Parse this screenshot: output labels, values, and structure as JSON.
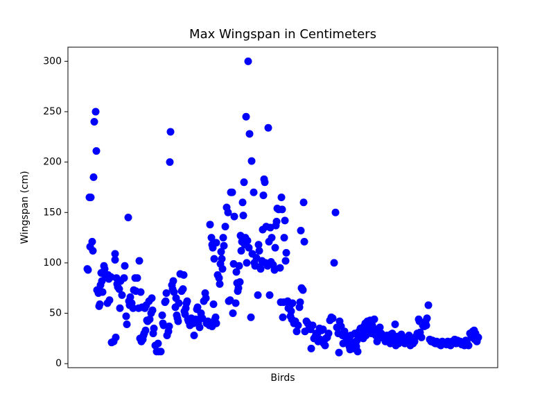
{
  "chart_data": {
    "type": "scatter",
    "title": "Max Wingspan in Centimeters",
    "x_label": "Birds",
    "y_label": "Wingspan (cm)",
    "color": "#0000ff",
    "xlim": [
      -28,
      592
    ],
    "xticks": [],
    "ylim": [
      -4,
      314
    ],
    "yticks": [
      0,
      50,
      100,
      150,
      200,
      250,
      300
    ],
    "x": [
      0,
      1,
      3,
      5,
      4,
      7,
      8,
      9,
      10,
      12,
      13,
      14,
      16,
      17,
      18,
      19,
      20,
      21,
      22,
      24,
      25,
      26,
      27,
      29,
      30,
      31,
      32,
      34,
      35,
      38,
      40,
      40,
      41,
      42,
      43,
      44,
      46,
      47,
      48,
      50,
      53,
      54,
      56,
      57,
      59,
      60,
      61,
      62,
      64,
      66,
      67,
      69,
      70,
      72,
      74,
      75,
      76,
      77,
      78,
      79,
      80,
      81,
      82,
      83,
      84,
      85,
      86,
      87,
      89,
      90,
      92,
      93,
      94,
      95,
      96,
      98,
      100,
      102,
      103,
      106,
      108,
      109,
      110,
      112,
      113,
      114,
      115,
      117,
      118,
      119,
      120,
      122,
      123,
      124,
      125,
      127,
      128,
      129,
      130,
      131,
      132,
      134,
      136,
      138,
      139,
      140,
      141,
      142,
      143,
      144,
      145,
      146,
      148,
      150,
      152,
      153,
      154,
      156,
      158,
      159,
      160,
      162,
      163,
      164,
      166,
      168,
      170,
      171,
      172,
      174,
      176,
      178,
      180,
      182,
      183,
      184,
      185,
      186,
      177,
      179,
      180,
      181,
      183,
      186,
      188,
      190,
      191,
      192,
      193,
      194,
      195,
      196,
      197,
      199,
      201,
      203,
      204,
      206,
      207,
      209,
      210,
      211,
      212,
      214,
      215,
      216,
      217,
      218,
      219,
      220,
      221,
      222,
      223,
      224,
      225,
      226,
      227,
      228,
      229,
      230,
      231,
      232,
      233,
      234,
      236,
      237,
      238,
      240,
      241,
      242,
      244,
      246,
      247,
      248,
      249,
      250,
      252,
      253,
      254,
      255,
      256,
      257,
      258,
      260,
      261,
      262,
      263,
      264,
      265,
      266,
      268,
      270,
      271,
      272,
      273,
      274,
      276,
      278,
      279,
      280,
      281,
      282,
      283,
      284,
      285,
      286,
      287,
      289,
      290,
      292,
      293,
      294,
      295,
      296,
      298,
      300,
      302,
      304,
      306,
      307,
      308,
      309,
      310,
      311,
      312,
      313,
      314,
      316,
      318,
      320,
      322,
      323,
      325,
      327,
      329,
      330,
      332,
      333,
      335,
      336,
      338,
      340,
      341,
      343,
      344,
      346,
      348,
      350,
      352,
      354,
      356,
      358,
      360,
      362,
      363,
      364,
      366,
      368,
      369,
      371,
      373,
      374,
      376,
      378,
      379,
      380,
      382,
      383,
      384,
      386,
      387,
      388,
      389,
      390,
      392,
      393,
      394,
      396,
      398,
      399,
      400,
      401,
      402,
      404,
      405,
      406,
      408,
      410,
      411,
      412,
      414,
      416,
      417,
      418,
      420,
      421,
      422,
      423,
      424,
      426,
      428,
      429,
      430,
      432,
      433,
      434,
      436,
      437,
      438,
      440,
      442,
      443,
      444,
      445,
      446,
      448,
      449,
      450,
      452,
      453,
      454,
      456,
      458,
      460,
      462,
      464,
      466,
      468,
      470,
      472,
      474,
      476,
      478,
      479,
      480,
      482,
      484,
      486,
      488,
      489,
      490,
      492,
      494,
      496,
      498,
      500,
      502,
      504,
      506,
      508,
      510,
      512,
      514,
      516,
      518,
      520,
      522,
      524,
      526,
      528,
      530,
      532,
      534,
      536,
      538,
      540,
      542,
      544,
      546,
      548,
      550,
      552,
      554,
      556,
      558,
      559,
      560,
      562,
      563,
      564
    ],
    "values": [
      94,
      93,
      165,
      165,
      116,
      121,
      112,
      185,
      240,
      250,
      211,
      73,
      70,
      57,
      59,
      78,
      90,
      82,
      71,
      97,
      94,
      87,
      88,
      60,
      88,
      84,
      63,
      86,
      21,
      22,
      103,
      109,
      26,
      85,
      79,
      76,
      74,
      55,
      82,
      68,
      85,
      97,
      47,
      39,
      145,
      62,
      58,
      66,
      60,
      55,
      73,
      85,
      72,
      85,
      55,
      102,
      25,
      71,
      22,
      56,
      24,
      28,
      30,
      55,
      33,
      58,
      43,
      42,
      62,
      44,
      50,
      65,
      53,
      30,
      35,
      18,
      12,
      20,
      12,
      12,
      48,
      40,
      38,
      61,
      62,
      70,
      28,
      32,
      37,
      200,
      230,
      78,
      74,
      82,
      71,
      56,
      65,
      48,
      45,
      42,
      60,
      89,
      72,
      74,
      88,
      52,
      49,
      55,
      60,
      62,
      44,
      42,
      38,
      45,
      42,
      40,
      28,
      44,
      54,
      56,
      40,
      36,
      45,
      50,
      45,
      62,
      70,
      65,
      40,
      42,
      38,
      40,
      37,
      59,
      42,
      44,
      46,
      40,
      138,
      125,
      118,
      115,
      104,
      120,
      88,
      85,
      79,
      99,
      111,
      104,
      94,
      125,
      117,
      136,
      155,
      150,
      62,
      63,
      170,
      170,
      50,
      99,
      146,
      60,
      91,
      80,
      72,
      75,
      97,
      81,
      127,
      112,
      121,
      160,
      147,
      180,
      118,
      125,
      245,
      100,
      122,
      300,
      115,
      228,
      46,
      201,
      109,
      170,
      100,
      97,
      105,
      68,
      118,
      112,
      96,
      94,
      102,
      133,
      167,
      183,
      180,
      100,
      136,
      97,
      234,
      121,
      68,
      135,
      101,
      125,
      98,
      93,
      115,
      137,
      141,
      154,
      153,
      95,
      61,
      165,
      153,
      46,
      61,
      125,
      142,
      102,
      110,
      62,
      55,
      57,
      47,
      52,
      44,
      60,
      40,
      42,
      32,
      38,
      56,
      61,
      132,
      75,
      74,
      73,
      160,
      121,
      32,
      42,
      40,
      35,
      34,
      15,
      38,
      25,
      27,
      30,
      30,
      22,
      35,
      24,
      33,
      34,
      20,
      18,
      25,
      26,
      30,
      43,
      46,
      45,
      100,
      150,
      36,
      30,
      11,
      42,
      37,
      28,
      20,
      32,
      26,
      22,
      25,
      17,
      14,
      28,
      19,
      21,
      15,
      30,
      20,
      17,
      23,
      12,
      32,
      29,
      35,
      30,
      25,
      37,
      31,
      40,
      28,
      42,
      33,
      35,
      43,
      30,
      38,
      36,
      44,
      28,
      33,
      22,
      25,
      32,
      36,
      26,
      30,
      28,
      25,
      26,
      22,
      28,
      23,
      24,
      25,
      20,
      29,
      30,
      26,
      22,
      39,
      18,
      21,
      27,
      20,
      24,
      22,
      29,
      26,
      25,
      20,
      22,
      26,
      28,
      18,
      24,
      20,
      22,
      27,
      30,
      44,
      42,
      31,
      26,
      38,
      37,
      42,
      38,
      45,
      58,
      24,
      22,
      23,
      21,
      20,
      22,
      20,
      19,
      18,
      22,
      20,
      21,
      19,
      22,
      20,
      18,
      22,
      21,
      24,
      20,
      23,
      21,
      22,
      19,
      20,
      18,
      23,
      20,
      18,
      30,
      26,
      32,
      33,
      24,
      30,
      22,
      25,
      26
    ]
  }
}
